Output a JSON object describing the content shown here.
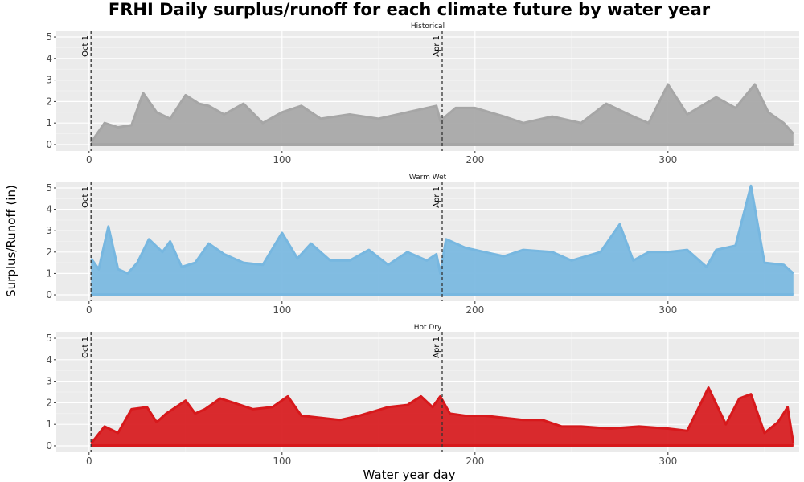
{
  "chart_data": {
    "type": "line",
    "title": "FRHI Daily surplus/runoff for each climate future by water year",
    "xlabel": "Water year day",
    "ylabel": "Surplus/Runoff (in)",
    "xlim": [
      -17,
      368
    ],
    "ylim": [
      -0.3,
      5.3
    ],
    "xticks": [
      0,
      100,
      200,
      300
    ],
    "yticks": [
      0,
      1,
      2,
      3,
      4,
      5
    ],
    "grid": true,
    "reference_lines": [
      {
        "x": 1,
        "label": "Oct 1"
      },
      {
        "x": 183,
        "label": "Apr 1"
      }
    ],
    "panels": [
      {
        "name": "Historical",
        "color": "#a6a6a6",
        "x": [
          1,
          8,
          15,
          22,
          28,
          35,
          42,
          50,
          57,
          62,
          70,
          80,
          90,
          100,
          110,
          120,
          135,
          150,
          165,
          180,
          182,
          190,
          200,
          215,
          225,
          240,
          255,
          268,
          282,
          290,
          300,
          310,
          325,
          335,
          345,
          352,
          360,
          365
        ],
        "y": [
          0.1,
          1.0,
          0.8,
          0.9,
          2.4,
          1.5,
          1.2,
          2.3,
          1.9,
          1.8,
          1.4,
          1.9,
          1.0,
          1.5,
          1.8,
          1.2,
          1.4,
          1.2,
          1.5,
          1.8,
          1.1,
          1.7,
          1.7,
          1.3,
          1.0,
          1.3,
          1.0,
          1.9,
          1.3,
          1.0,
          2.8,
          1.4,
          2.2,
          1.7,
          2.8,
          1.5,
          1.0,
          0.5
        ]
      },
      {
        "name": "Warm Wet",
        "color": "#77b7e0",
        "x": [
          1,
          5,
          10,
          15,
          20,
          25,
          31,
          38,
          42,
          48,
          55,
          62,
          70,
          80,
          90,
          100,
          108,
          115,
          125,
          135,
          145,
          155,
          165,
          175,
          180,
          182,
          185,
          195,
          205,
          215,
          225,
          240,
          250,
          265,
          275,
          282,
          290,
          300,
          310,
          320,
          325,
          335,
          343,
          350,
          360,
          365
        ],
        "y": [
          1.7,
          1.2,
          3.2,
          1.2,
          1.0,
          1.5,
          2.6,
          2.0,
          2.5,
          1.3,
          1.5,
          2.4,
          1.9,
          1.5,
          1.4,
          2.9,
          1.7,
          2.4,
          1.6,
          1.6,
          2.1,
          1.4,
          2.0,
          1.6,
          1.9,
          1.0,
          2.6,
          2.2,
          2.0,
          1.8,
          2.1,
          2.0,
          1.6,
          2.0,
          3.3,
          1.6,
          2.0,
          2.0,
          2.1,
          1.3,
          2.1,
          2.3,
          5.1,
          1.5,
          1.4,
          1.0
        ]
      },
      {
        "name": "Hot Dry",
        "color": "#d7191c",
        "x": [
          1,
          8,
          15,
          22,
          30,
          35,
          40,
          50,
          55,
          60,
          68,
          75,
          85,
          95,
          103,
          110,
          120,
          130,
          140,
          155,
          165,
          172,
          178,
          182,
          187,
          195,
          205,
          215,
          225,
          235,
          245,
          255,
          270,
          285,
          300,
          310,
          321,
          330,
          337,
          343,
          350,
          357,
          362,
          365
        ],
        "y": [
          0.1,
          0.9,
          0.6,
          1.7,
          1.8,
          1.1,
          1.5,
          2.1,
          1.5,
          1.7,
          2.2,
          2.0,
          1.7,
          1.8,
          2.3,
          1.4,
          1.3,
          1.2,
          1.4,
          1.8,
          1.9,
          2.3,
          1.8,
          2.3,
          1.5,
          1.4,
          1.4,
          1.3,
          1.2,
          1.2,
          0.9,
          0.9,
          0.8,
          0.9,
          0.8,
          0.7,
          2.7,
          1.0,
          2.2,
          2.4,
          0.6,
          1.1,
          1.8,
          0.1
        ]
      }
    ]
  }
}
